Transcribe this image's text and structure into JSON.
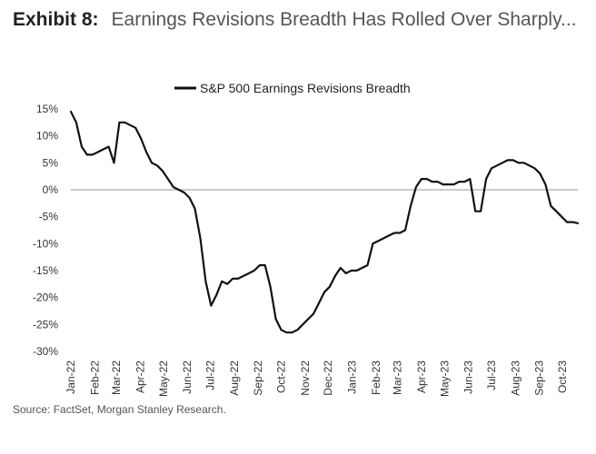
{
  "header": {
    "label": "Exhibit 8:",
    "title": "Earnings Revisions Breadth Has Rolled Over Sharply..."
  },
  "source": "Source: FactSet, Morgan Stanley Research.",
  "chart_data": {
    "type": "line",
    "title": "Earnings Revisions Breadth Has Rolled Over Sharply...",
    "xlabel": "",
    "ylabel": "",
    "legend_position": "top-center",
    "grid": false,
    "zero_line": true,
    "ylim": [
      -30,
      15
    ],
    "yticks": [
      15,
      10,
      5,
      0,
      -5,
      -10,
      -15,
      -20,
      -25,
      -30
    ],
    "ytick_labels": [
      "15%",
      "10%",
      "5%",
      "0%",
      "-5%",
      "-10%",
      "-15%",
      "-20%",
      "-25%",
      "-30%"
    ],
    "x_tick_labels": [
      "Jan-22",
      "Feb-22",
      "Mar-22",
      "Apr-22",
      "May-22",
      "Jun-22",
      "Jul-22",
      "Aug-22",
      "Sep-22",
      "Oct-22",
      "Nov-22",
      "Dec-22",
      "Jan-23",
      "Feb-23",
      "Mar-23",
      "Apr-23",
      "May-23",
      "Jun-23",
      "Jul-23",
      "Aug-23",
      "Sep-23",
      "Oct-23"
    ],
    "series": [
      {
        "name": "S&P 500 Earnings Revisions Breadth",
        "color": "#111111",
        "x": [
          "2022-01-01",
          "2022-01-08",
          "2022-01-15",
          "2022-01-22",
          "2022-01-29",
          "2022-02-05",
          "2022-02-12",
          "2022-02-19",
          "2022-02-26",
          "2022-03-05",
          "2022-03-12",
          "2022-03-19",
          "2022-03-26",
          "2022-04-02",
          "2022-04-09",
          "2022-04-16",
          "2022-04-23",
          "2022-04-30",
          "2022-05-07",
          "2022-05-14",
          "2022-05-21",
          "2022-05-28",
          "2022-06-04",
          "2022-06-11",
          "2022-06-18",
          "2022-06-25",
          "2022-07-02",
          "2022-07-09",
          "2022-07-16",
          "2022-07-23",
          "2022-07-30",
          "2022-08-06",
          "2022-08-13",
          "2022-08-20",
          "2022-08-27",
          "2022-09-03",
          "2022-09-10",
          "2022-09-17",
          "2022-09-24",
          "2022-10-01",
          "2022-10-08",
          "2022-10-15",
          "2022-10-22",
          "2022-10-29",
          "2022-11-05",
          "2022-11-12",
          "2022-11-19",
          "2022-11-26",
          "2022-12-03",
          "2022-12-10",
          "2022-12-17",
          "2022-12-24",
          "2022-12-31",
          "2023-01-07",
          "2023-01-14",
          "2023-01-21",
          "2023-01-28",
          "2023-02-04",
          "2023-02-11",
          "2023-02-18",
          "2023-02-25",
          "2023-03-04",
          "2023-03-11",
          "2023-03-18",
          "2023-03-25",
          "2023-04-01",
          "2023-04-08",
          "2023-04-15",
          "2023-04-22",
          "2023-04-29",
          "2023-05-06",
          "2023-05-13",
          "2023-05-20",
          "2023-05-27",
          "2023-06-03",
          "2023-06-10",
          "2023-06-17",
          "2023-06-24",
          "2023-07-01",
          "2023-07-08",
          "2023-07-15",
          "2023-07-22",
          "2023-07-29",
          "2023-08-05",
          "2023-08-12",
          "2023-08-19",
          "2023-08-26",
          "2023-09-02",
          "2023-09-09",
          "2023-09-16",
          "2023-09-23",
          "2023-09-30",
          "2023-10-07",
          "2023-10-14",
          "2023-10-21"
        ],
        "values": [
          14.5,
          12.5,
          8.0,
          6.5,
          6.5,
          7.0,
          7.5,
          8.0,
          5.0,
          12.5,
          12.5,
          12.0,
          11.5,
          9.5,
          7.0,
          5.0,
          4.5,
          3.5,
          2.0,
          0.5,
          0.0,
          -0.5,
          -1.5,
          -3.5,
          -9.0,
          -17.0,
          -21.5,
          -19.5,
          -17.0,
          -17.5,
          -16.5,
          -16.5,
          -16.0,
          -15.5,
          -15.0,
          -14.0,
          -14.0,
          -18.0,
          -24.0,
          -26.0,
          -26.5,
          -26.5,
          -26.0,
          -25.0,
          -24.0,
          -23.0,
          -21.0,
          -19.0,
          -18.0,
          -16.0,
          -14.5,
          -15.5,
          -15.0,
          -15.0,
          -14.5,
          -14.0,
          -10.0,
          -9.5,
          -9.0,
          -8.5,
          -8.0,
          -8.0,
          -7.5,
          -3.0,
          0.5,
          2.0,
          2.0,
          1.5,
          1.5,
          1.0,
          1.0,
          1.0,
          1.5,
          1.5,
          2.0,
          -4.0,
          -4.0,
          2.0,
          4.0,
          4.5,
          5.0,
          5.5,
          5.5,
          5.0,
          5.0,
          4.5,
          4.0,
          3.0,
          1.0,
          -3.0,
          -4.0,
          -5.0,
          -6.0,
          -6.0,
          -6.2
        ]
      }
    ]
  }
}
